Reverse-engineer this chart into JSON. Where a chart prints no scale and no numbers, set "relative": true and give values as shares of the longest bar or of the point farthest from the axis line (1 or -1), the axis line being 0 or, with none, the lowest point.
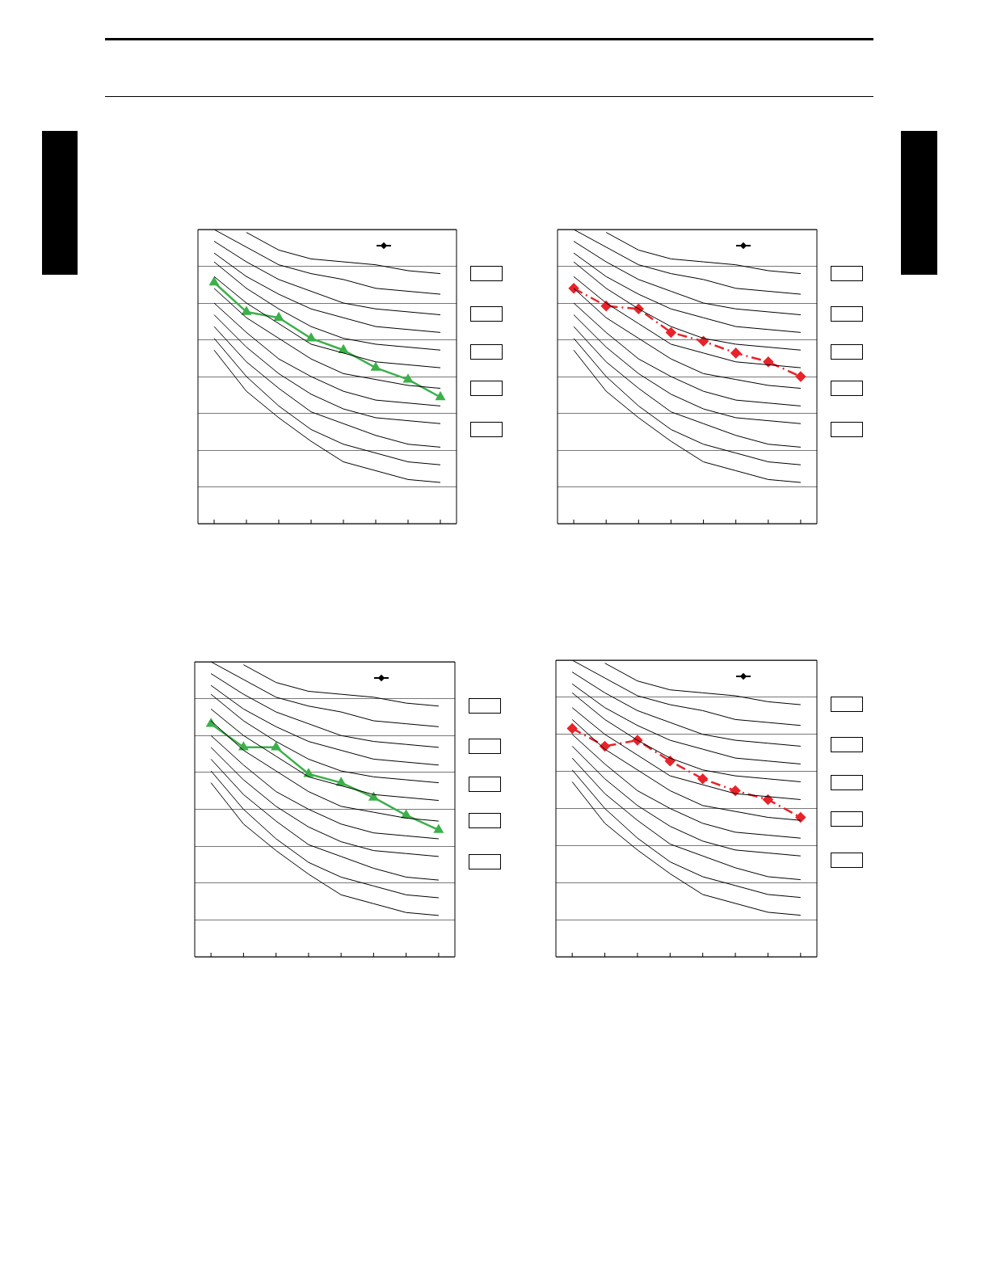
{
  "chart_data": [
    {
      "type": "line",
      "relative": true,
      "grid": "y",
      "categories": [
        null,
        null,
        null,
        null,
        null,
        null,
        null,
        null
      ],
      "series": [
        {
          "color": "#000000",
          "marker": "none",
          "line_style": "solid",
          "values": [
            null,
            0.99,
            0.93,
            0.9,
            0.89,
            0.88,
            0.86,
            0.85
          ]
        },
        {
          "color": "#000000",
          "marker": "none",
          "line_style": "solid",
          "values": [
            1.0,
            0.94,
            0.88,
            0.85,
            0.83,
            0.8,
            0.79,
            0.78
          ]
        },
        {
          "color": "#000000",
          "marker": "none",
          "line_style": "solid",
          "values": [
            0.96,
            0.89,
            0.83,
            0.79,
            0.75,
            0.73,
            0.72,
            0.71
          ]
        },
        {
          "color": "#000000",
          "marker": "none",
          "line_style": "solid",
          "values": [
            0.92,
            0.84,
            0.78,
            0.73,
            0.7,
            0.67,
            0.66,
            0.65
          ]
        },
        {
          "color": "#000000",
          "marker": "none",
          "line_style": "solid",
          "values": [
            0.89,
            0.8,
            0.73,
            0.67,
            0.63,
            0.61,
            0.6,
            0.59
          ]
        },
        {
          "color": "#000000",
          "marker": "none",
          "line_style": "solid",
          "values": [
            0.84,
            0.75,
            0.68,
            0.61,
            0.58,
            0.55,
            0.54,
            0.53
          ]
        },
        {
          "color": "#000000",
          "marker": "none",
          "line_style": "solid",
          "values": [
            0.8,
            0.7,
            0.63,
            0.56,
            0.51,
            0.49,
            0.47,
            0.46
          ]
        },
        {
          "color": "#000000",
          "marker": "none",
          "line_style": "solid",
          "values": [
            0.75,
            0.65,
            0.56,
            0.5,
            0.45,
            0.42,
            0.41,
            0.4
          ]
        },
        {
          "color": "#000000",
          "marker": "none",
          "line_style": "solid",
          "values": [
            0.71,
            0.6,
            0.51,
            0.44,
            0.39,
            0.36,
            0.35,
            0.34
          ]
        },
        {
          "color": "#000000",
          "marker": "none",
          "line_style": "solid",
          "values": [
            0.67,
            0.55,
            0.46,
            0.38,
            0.34,
            0.3,
            0.27,
            0.26
          ]
        },
        {
          "color": "#000000",
          "marker": "none",
          "line_style": "solid",
          "values": [
            0.63,
            0.5,
            0.4,
            0.32,
            0.27,
            0.24,
            0.21,
            0.2
          ]
        },
        {
          "color": "#000000",
          "marker": "none",
          "line_style": "solid",
          "values": [
            0.59,
            0.45,
            0.36,
            0.28,
            0.21,
            0.18,
            0.15,
            0.14
          ]
        },
        {
          "color": "#3cb04a",
          "marker": "triangle",
          "line_style": "solid",
          "values": [
            0.82,
            0.72,
            0.7,
            0.63,
            0.59,
            0.53,
            0.49,
            0.43
          ]
        }
      ]
    },
    {
      "type": "line",
      "relative": true,
      "grid": "y",
      "categories": [
        null,
        null,
        null,
        null,
        null,
        null,
        null,
        null
      ],
      "series": [
        {
          "color": "#000000",
          "marker": "none",
          "line_style": "solid",
          "values": [
            null,
            0.99,
            0.93,
            0.9,
            0.89,
            0.88,
            0.86,
            0.85
          ]
        },
        {
          "color": "#000000",
          "marker": "none",
          "line_style": "solid",
          "values": [
            1.0,
            0.94,
            0.88,
            0.85,
            0.83,
            0.8,
            0.79,
            0.78
          ]
        },
        {
          "color": "#000000",
          "marker": "none",
          "line_style": "solid",
          "values": [
            0.96,
            0.89,
            0.83,
            0.79,
            0.75,
            0.73,
            0.72,
            0.71
          ]
        },
        {
          "color": "#000000",
          "marker": "none",
          "line_style": "solid",
          "values": [
            0.92,
            0.84,
            0.78,
            0.73,
            0.7,
            0.67,
            0.66,
            0.65
          ]
        },
        {
          "color": "#000000",
          "marker": "none",
          "line_style": "solid",
          "values": [
            0.89,
            0.8,
            0.73,
            0.67,
            0.63,
            0.61,
            0.6,
            0.59
          ]
        },
        {
          "color": "#000000",
          "marker": "none",
          "line_style": "solid",
          "values": [
            0.84,
            0.75,
            0.68,
            0.61,
            0.58,
            0.55,
            0.54,
            0.53
          ]
        },
        {
          "color": "#000000",
          "marker": "none",
          "line_style": "solid",
          "values": [
            0.8,
            0.7,
            0.63,
            0.56,
            0.51,
            0.49,
            0.47,
            0.46
          ]
        },
        {
          "color": "#000000",
          "marker": "none",
          "line_style": "solid",
          "values": [
            0.75,
            0.65,
            0.56,
            0.5,
            0.45,
            0.42,
            0.41,
            0.4
          ]
        },
        {
          "color": "#000000",
          "marker": "none",
          "line_style": "solid",
          "values": [
            0.71,
            0.6,
            0.51,
            0.44,
            0.39,
            0.36,
            0.35,
            0.34
          ]
        },
        {
          "color": "#000000",
          "marker": "none",
          "line_style": "solid",
          "values": [
            0.67,
            0.55,
            0.46,
            0.38,
            0.34,
            0.3,
            0.27,
            0.26
          ]
        },
        {
          "color": "#000000",
          "marker": "none",
          "line_style": "solid",
          "values": [
            0.63,
            0.5,
            0.4,
            0.32,
            0.27,
            0.24,
            0.21,
            0.2
          ]
        },
        {
          "color": "#000000",
          "marker": "none",
          "line_style": "solid",
          "values": [
            0.59,
            0.45,
            0.36,
            0.28,
            0.21,
            0.18,
            0.15,
            0.14
          ]
        },
        {
          "color": "#e8232a",
          "marker": "diamond",
          "line_style": "dashed",
          "values": [
            0.8,
            0.74,
            0.73,
            0.65,
            0.62,
            0.58,
            0.55,
            0.5
          ]
        }
      ]
    },
    {
      "type": "line",
      "relative": true,
      "grid": "y",
      "categories": [
        null,
        null,
        null,
        null,
        null,
        null,
        null,
        null
      ],
      "series": [
        {
          "color": "#000000",
          "marker": "none",
          "line_style": "solid",
          "values": [
            null,
            0.99,
            0.93,
            0.9,
            0.89,
            0.88,
            0.86,
            0.85
          ]
        },
        {
          "color": "#000000",
          "marker": "none",
          "line_style": "solid",
          "values": [
            1.0,
            0.94,
            0.88,
            0.85,
            0.83,
            0.8,
            0.79,
            0.78
          ]
        },
        {
          "color": "#000000",
          "marker": "none",
          "line_style": "solid",
          "values": [
            0.96,
            0.89,
            0.83,
            0.79,
            0.75,
            0.73,
            0.72,
            0.71
          ]
        },
        {
          "color": "#000000",
          "marker": "none",
          "line_style": "solid",
          "values": [
            0.92,
            0.84,
            0.78,
            0.73,
            0.7,
            0.67,
            0.66,
            0.65
          ]
        },
        {
          "color": "#000000",
          "marker": "none",
          "line_style": "solid",
          "values": [
            0.89,
            0.8,
            0.73,
            0.67,
            0.63,
            0.61,
            0.6,
            0.59
          ]
        },
        {
          "color": "#000000",
          "marker": "none",
          "line_style": "solid",
          "values": [
            0.84,
            0.75,
            0.68,
            0.61,
            0.58,
            0.55,
            0.54,
            0.53
          ]
        },
        {
          "color": "#000000",
          "marker": "none",
          "line_style": "solid",
          "values": [
            0.8,
            0.7,
            0.63,
            0.56,
            0.51,
            0.49,
            0.47,
            0.46
          ]
        },
        {
          "color": "#000000",
          "marker": "none",
          "line_style": "solid",
          "values": [
            0.75,
            0.65,
            0.56,
            0.5,
            0.45,
            0.42,
            0.41,
            0.4
          ]
        },
        {
          "color": "#000000",
          "marker": "none",
          "line_style": "solid",
          "values": [
            0.71,
            0.6,
            0.51,
            0.44,
            0.39,
            0.36,
            0.35,
            0.34
          ]
        },
        {
          "color": "#000000",
          "marker": "none",
          "line_style": "solid",
          "values": [
            0.67,
            0.55,
            0.46,
            0.38,
            0.34,
            0.3,
            0.27,
            0.26
          ]
        },
        {
          "color": "#000000",
          "marker": "none",
          "line_style": "solid",
          "values": [
            0.63,
            0.5,
            0.4,
            0.32,
            0.27,
            0.24,
            0.21,
            0.2
          ]
        },
        {
          "color": "#000000",
          "marker": "none",
          "line_style": "solid",
          "values": [
            0.59,
            0.45,
            0.36,
            0.28,
            0.21,
            0.18,
            0.15,
            0.14
          ]
        },
        {
          "color": "#3cb04a",
          "marker": "triangle",
          "line_style": "solid",
          "values": [
            0.79,
            0.71,
            0.71,
            0.62,
            0.59,
            0.54,
            0.48,
            0.43
          ]
        }
      ]
    },
    {
      "type": "line",
      "relative": true,
      "grid": "y",
      "categories": [
        null,
        null,
        null,
        null,
        null,
        null,
        null,
        null
      ],
      "series": [
        {
          "color": "#000000",
          "marker": "none",
          "line_style": "solid",
          "values": [
            null,
            0.99,
            0.93,
            0.9,
            0.89,
            0.88,
            0.86,
            0.85
          ]
        },
        {
          "color": "#000000",
          "marker": "none",
          "line_style": "solid",
          "values": [
            1.0,
            0.94,
            0.88,
            0.85,
            0.83,
            0.8,
            0.79,
            0.78
          ]
        },
        {
          "color": "#000000",
          "marker": "none",
          "line_style": "solid",
          "values": [
            0.96,
            0.89,
            0.83,
            0.79,
            0.75,
            0.73,
            0.72,
            0.71
          ]
        },
        {
          "color": "#000000",
          "marker": "none",
          "line_style": "solid",
          "values": [
            0.92,
            0.84,
            0.78,
            0.73,
            0.7,
            0.67,
            0.66,
            0.65
          ]
        },
        {
          "color": "#000000",
          "marker": "none",
          "line_style": "solid",
          "values": [
            0.89,
            0.8,
            0.73,
            0.67,
            0.63,
            0.61,
            0.6,
            0.59
          ]
        },
        {
          "color": "#000000",
          "marker": "none",
          "line_style": "solid",
          "values": [
            0.84,
            0.75,
            0.68,
            0.61,
            0.58,
            0.55,
            0.54,
            0.53
          ]
        },
        {
          "color": "#000000",
          "marker": "none",
          "line_style": "solid",
          "values": [
            0.8,
            0.7,
            0.63,
            0.56,
            0.51,
            0.49,
            0.47,
            0.46
          ]
        },
        {
          "color": "#000000",
          "marker": "none",
          "line_style": "solid",
          "values": [
            0.75,
            0.65,
            0.56,
            0.5,
            0.45,
            0.42,
            0.41,
            0.4
          ]
        },
        {
          "color": "#000000",
          "marker": "none",
          "line_style": "solid",
          "values": [
            0.71,
            0.6,
            0.51,
            0.44,
            0.39,
            0.36,
            0.35,
            0.34
          ]
        },
        {
          "color": "#000000",
          "marker": "none",
          "line_style": "solid",
          "values": [
            0.67,
            0.55,
            0.46,
            0.38,
            0.34,
            0.3,
            0.27,
            0.26
          ]
        },
        {
          "color": "#000000",
          "marker": "none",
          "line_style": "solid",
          "values": [
            0.63,
            0.5,
            0.4,
            0.32,
            0.27,
            0.24,
            0.21,
            0.2
          ]
        },
        {
          "color": "#000000",
          "marker": "none",
          "line_style": "solid",
          "values": [
            0.59,
            0.45,
            0.36,
            0.28,
            0.21,
            0.18,
            0.15,
            0.14
          ]
        },
        {
          "color": "#e8232a",
          "marker": "diamond",
          "line_style": "dashed",
          "values": [
            0.77,
            0.71,
            0.73,
            0.66,
            0.6,
            0.56,
            0.53,
            0.47
          ]
        }
      ]
    }
  ]
}
